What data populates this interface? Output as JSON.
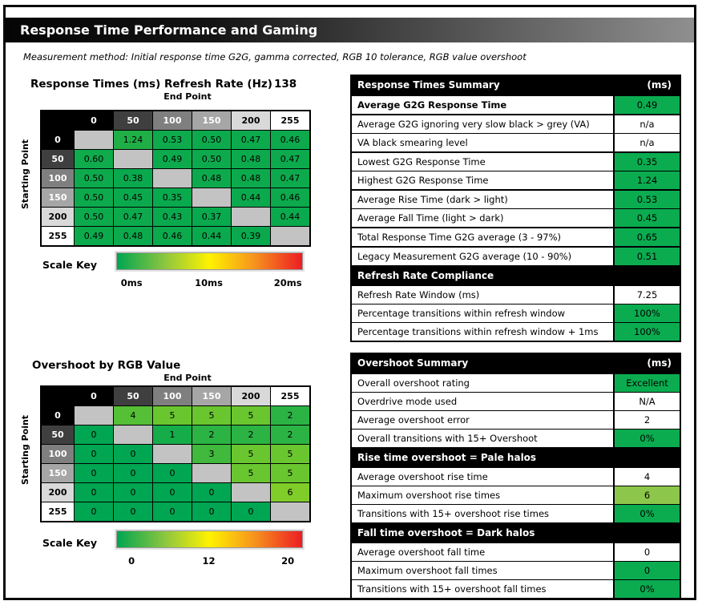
{
  "colors": {
    "accent_green": "#0bac50",
    "light_green": "#8cc64a",
    "diagonal_grey": "#c3c3c3",
    "heat_green": "#00a651",
    "heat_yellow": "#fff200",
    "heat_red": "#ed1c24",
    "scale_gradient": [
      "#00a651",
      "#8dc63f",
      "#fff200",
      "#f7941d",
      "#ed1c24"
    ],
    "level_shades": [
      {
        "bg": "#000000",
        "fg": "#ffffff"
      },
      {
        "bg": "#3f3f3f",
        "fg": "#ffffff"
      },
      {
        "bg": "#7f7f7f",
        "fg": "#ffffff"
      },
      {
        "bg": "#a6a6a6",
        "fg": "#ffffff"
      },
      {
        "bg": "#d9d9d9",
        "fg": "#000000"
      },
      {
        "bg": "#ffffff",
        "fg": "#000000"
      }
    ]
  },
  "header": {
    "title": "Response Time Performance and Gaming"
  },
  "subtitle": "Measurement method: Initial response time G2G, gamma corrected, RGB 10 tolerance, RGB value overshoot",
  "response_matrix": {
    "title": "Response Times (ms)",
    "refresh_rate_label": "Refresh Rate (Hz)",
    "refresh_rate_value": "138",
    "col_axis": "End Point",
    "row_axis": "Starting Point",
    "levels": [
      "0",
      "50",
      "100",
      "150",
      "200",
      "255"
    ],
    "rows": [
      [
        null,
        "1.24",
        "0.53",
        "0.50",
        "0.47",
        "0.46"
      ],
      [
        "0.60",
        null,
        "0.49",
        "0.50",
        "0.48",
        "0.47"
      ],
      [
        "0.50",
        "0.38",
        null,
        "0.48",
        "0.48",
        "0.47"
      ],
      [
        "0.50",
        "0.45",
        "0.35",
        null,
        "0.44",
        "0.46"
      ],
      [
        "0.50",
        "0.47",
        "0.43",
        "0.37",
        null,
        "0.44"
      ],
      [
        "0.49",
        "0.48",
        "0.46",
        "0.44",
        "0.39",
        null
      ]
    ],
    "scale": {
      "label": "Scale Key",
      "ticks": [
        "0ms",
        "10ms",
        "20ms"
      ],
      "mid": 10,
      "max": 20
    }
  },
  "overshoot_matrix": {
    "title": "Overshoot by RGB Value",
    "col_axis": "End Point",
    "row_axis": "Starting Point",
    "levels": [
      "0",
      "50",
      "100",
      "150",
      "200",
      "255"
    ],
    "rows": [
      [
        null,
        "4",
        "5",
        "5",
        "5",
        "2"
      ],
      [
        "0",
        null,
        "1",
        "2",
        "2",
        "2"
      ],
      [
        "0",
        "0",
        null,
        "3",
        "5",
        "5"
      ],
      [
        "0",
        "0",
        "0",
        null,
        "5",
        "5"
      ],
      [
        "0",
        "0",
        "0",
        "0",
        null,
        "6"
      ],
      [
        "0",
        "0",
        "0",
        "0",
        "0",
        null
      ]
    ],
    "scale": {
      "label": "Scale Key",
      "ticks": [
        "0",
        "12",
        "20"
      ],
      "mid": 12,
      "max": 20
    }
  },
  "summaries": {
    "response": {
      "title": "Response Times Summary",
      "unit": "(ms)",
      "rows": [
        {
          "kind": "data",
          "label": "Average G2G Response Time",
          "value": "0.49",
          "bg": "green",
          "bold": true,
          "group_end": true
        },
        {
          "kind": "data",
          "label": "Average G2G ignoring very slow black > grey (VA)",
          "value": "n/a",
          "bg": "white"
        },
        {
          "kind": "data",
          "label": "VA black smearing level",
          "value": "n/a",
          "bg": "white",
          "group_end": true
        },
        {
          "kind": "data",
          "label": "Lowest G2G Response Time",
          "value": "0.35",
          "bg": "green"
        },
        {
          "kind": "data",
          "label": "Highest G2G Response Time",
          "value": "1.24",
          "bg": "green",
          "group_end": true
        },
        {
          "kind": "data",
          "label": "Average Rise Time (dark > light)",
          "value": "0.53",
          "bg": "green"
        },
        {
          "kind": "data",
          "label": "Average Fall Time (light > dark)",
          "value": "0.45",
          "bg": "green",
          "group_end": true
        },
        {
          "kind": "data",
          "label": "Total Response Time G2G average (3 - 97%)",
          "value": "0.65",
          "bg": "green",
          "group_end": true
        },
        {
          "kind": "data",
          "label": "Legacy Measurement G2G average (10 - 90%)",
          "value": "0.51",
          "bg": "green",
          "group_end": true
        },
        {
          "kind": "section",
          "label": "Refresh Rate Compliance"
        },
        {
          "kind": "data",
          "label": "Refresh Rate Window (ms)",
          "value": "7.25",
          "bg": "white"
        },
        {
          "kind": "data",
          "label": "Percentage transitions within refresh window",
          "value": "100%",
          "bg": "green"
        },
        {
          "kind": "data",
          "label": "Percentage transitions within refresh window + 1ms",
          "value": "100%",
          "bg": "green"
        }
      ]
    },
    "overshoot": {
      "title": "Overshoot Summary",
      "unit": "(ms)",
      "rows": [
        {
          "kind": "data",
          "label": "Overall overshoot rating",
          "value": "Excellent",
          "bg": "green"
        },
        {
          "kind": "data",
          "label": "Overdrive mode used",
          "value": "N/A",
          "bg": "white"
        },
        {
          "kind": "data",
          "label": "Average overshoot error",
          "value": "2",
          "bg": "white"
        },
        {
          "kind": "data",
          "label": "Overall transitions with 15+ Overshoot",
          "value": "0%",
          "bg": "green",
          "group_end": true
        },
        {
          "kind": "section",
          "label": "Rise time overshoot = Pale halos"
        },
        {
          "kind": "data",
          "label": "Average overshoot rise time",
          "value": "4",
          "bg": "white"
        },
        {
          "kind": "data",
          "label": "Maximum overshoot rise times",
          "value": "6",
          "bg": "ltgreen"
        },
        {
          "kind": "data",
          "label": "Transitions with 15+ overshoot rise times",
          "value": "0%",
          "bg": "green",
          "group_end": true
        },
        {
          "kind": "section",
          "label": "Fall time overshoot = Dark halos"
        },
        {
          "kind": "data",
          "label": "Average overshoot fall time",
          "value": "0",
          "bg": "white"
        },
        {
          "kind": "data",
          "label": "Maximum overshoot fall times",
          "value": "0",
          "bg": "green"
        },
        {
          "kind": "data",
          "label": "Transitions with 15+ overshoot fall times",
          "value": "0%",
          "bg": "green"
        }
      ]
    }
  },
  "chart_data": [
    {
      "type": "heatmap",
      "title": "Response Times (ms)",
      "subtitle": "Refresh Rate (Hz) 138",
      "xlabel": "End Point",
      "ylabel": "Starting Point",
      "x_ticks": [
        "0",
        "50",
        "100",
        "150",
        "200",
        "255"
      ],
      "y_ticks": [
        "0",
        "50",
        "100",
        "150",
        "200",
        "255"
      ],
      "values": [
        [
          null,
          1.24,
          0.53,
          0.5,
          0.47,
          0.46
        ],
        [
          0.6,
          null,
          0.49,
          0.5,
          0.48,
          0.47
        ],
        [
          0.5,
          0.38,
          null,
          0.48,
          0.48,
          0.47
        ],
        [
          0.5,
          0.45,
          0.35,
          null,
          0.44,
          0.46
        ],
        [
          0.5,
          0.47,
          0.43,
          0.37,
          null,
          0.44
        ],
        [
          0.49,
          0.48,
          0.46,
          0.44,
          0.39,
          null
        ]
      ],
      "scale": {
        "min": 0,
        "mid": 10,
        "max": 20,
        "unit": "ms",
        "colors": [
          "green",
          "yellow",
          "red"
        ]
      }
    },
    {
      "type": "heatmap",
      "title": "Overshoot by RGB Value",
      "xlabel": "End Point",
      "ylabel": "Starting Point",
      "x_ticks": [
        "0",
        "50",
        "100",
        "150",
        "200",
        "255"
      ],
      "y_ticks": [
        "0",
        "50",
        "100",
        "150",
        "200",
        "255"
      ],
      "values": [
        [
          null,
          4,
          5,
          5,
          5,
          2
        ],
        [
          0,
          null,
          1,
          2,
          2,
          2
        ],
        [
          0,
          0,
          null,
          3,
          5,
          5
        ],
        [
          0,
          0,
          0,
          null,
          5,
          5
        ],
        [
          0,
          0,
          0,
          0,
          null,
          6
        ],
        [
          0,
          0,
          0,
          0,
          0,
          null
        ]
      ],
      "scale": {
        "min": 0,
        "mid": 12,
        "max": 20,
        "unit": "",
        "colors": [
          "green",
          "yellow",
          "red"
        ]
      }
    }
  ]
}
